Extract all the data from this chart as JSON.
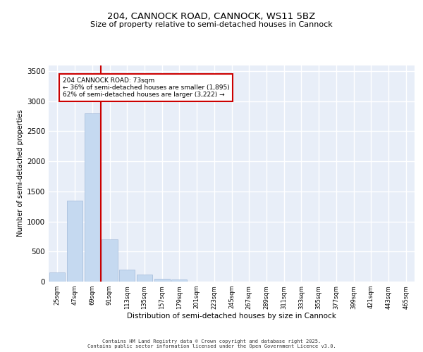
{
  "title1": "204, CANNOCK ROAD, CANNOCK, WS11 5BZ",
  "title2": "Size of property relative to semi-detached houses in Cannock",
  "xlabel": "Distribution of semi-detached houses by size in Cannock",
  "ylabel": "Number of semi-detached properties",
  "categories": [
    "25sqm",
    "47sqm",
    "69sqm",
    "91sqm",
    "113sqm",
    "135sqm",
    "157sqm",
    "179sqm",
    "201sqm",
    "223sqm",
    "245sqm",
    "267sqm",
    "289sqm",
    "311sqm",
    "333sqm",
    "355sqm",
    "377sqm",
    "399sqm",
    "421sqm",
    "443sqm",
    "465sqm"
  ],
  "values": [
    150,
    1350,
    2800,
    700,
    200,
    120,
    50,
    40,
    5,
    2,
    1,
    0,
    0,
    0,
    0,
    0,
    0,
    0,
    0,
    0,
    0
  ],
  "bar_color": "#c5d9f0",
  "bar_edge_color": "#a0b8d8",
  "vline_color": "#cc0000",
  "annotation_text": "204 CANNOCK ROAD: 73sqm\n← 36% of semi-detached houses are smaller (1,895)\n62% of semi-detached houses are larger (3,222) →",
  "ylim": [
    0,
    3600
  ],
  "yticks": [
    0,
    500,
    1000,
    1500,
    2000,
    2500,
    3000,
    3500
  ],
  "background_color": "#e8eef8",
  "grid_color": "#ffffff",
  "footer1": "Contains HM Land Registry data © Crown copyright and database right 2025.",
  "footer2": "Contains public sector information licensed under the Open Government Licence v3.0."
}
